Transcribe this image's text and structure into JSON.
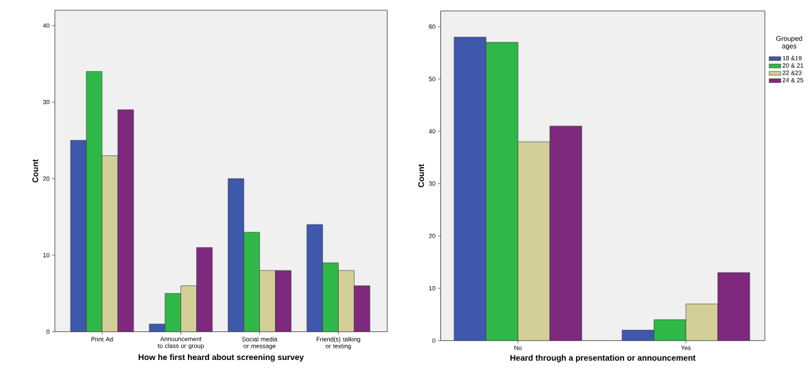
{
  "chart_data": [
    {
      "type": "bar",
      "categories": [
        "Print Ad",
        "Announcement to class or group",
        "Social media or message",
        "Friend(s) talking or texting"
      ],
      "series": [
        {
          "color": "#3e58ac",
          "values": [
            25,
            1,
            20,
            14
          ]
        },
        {
          "color": "#2fb847",
          "values": [
            34,
            5,
            13,
            9
          ]
        },
        {
          "color": "#d4cf98",
          "values": [
            23,
            6,
            8,
            8
          ]
        },
        {
          "color": "#7e287e",
          "values": [
            29,
            11,
            8,
            6
          ]
        }
      ],
      "xlabel": "How he first heard about screening survey",
      "ylabel": "Count",
      "ylim": [
        0,
        42
      ],
      "yticks": [
        0,
        10,
        20,
        30,
        40
      ]
    },
    {
      "type": "bar",
      "categories": [
        "No",
        "Yes"
      ],
      "series": [
        {
          "name": "18 &19",
          "color": "#3e58ac",
          "values": [
            58,
            2
          ]
        },
        {
          "name": "20 & 21",
          "color": "#2fb847",
          "values": [
            57,
            4
          ]
        },
        {
          "name": "22 &23",
          "color": "#d4cf98",
          "values": [
            38,
            7
          ]
        },
        {
          "name": "24 & 25",
          "color": "#7e287e",
          "values": [
            41,
            13
          ]
        }
      ],
      "xlabel": "Heard through a presentation or announcement",
      "ylabel": "Count",
      "ylim": [
        0,
        63
      ],
      "yticks": [
        0,
        10,
        20,
        30,
        40,
        50,
        60
      ],
      "legend": "top right",
      "legend_title": "Grouped ages"
    }
  ]
}
